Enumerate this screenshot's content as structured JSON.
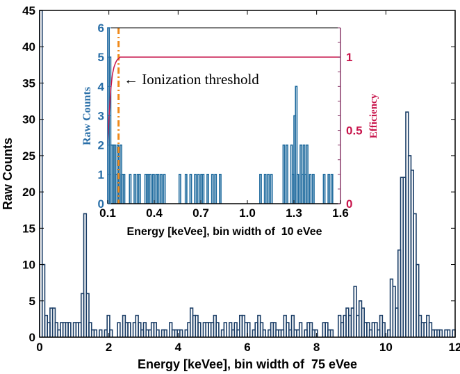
{
  "chart_data": [
    {
      "type": "bar",
      "subtype": "histogram",
      "name": "main",
      "xlabel": "Energy [keVee], bin width of  75 eVee",
      "ylabel": "Raw Counts",
      "xlim": [
        0,
        12
      ],
      "ylim": [
        0,
        45
      ],
      "bin_width": 0.075,
      "xticks": [
        "0",
        "2",
        "4",
        "6",
        "8",
        "10",
        "12"
      ],
      "yticks": [
        "0",
        "5",
        "10",
        "15",
        "20",
        "25",
        "30",
        "35",
        "40",
        "45"
      ],
      "values": [
        50,
        10,
        3,
        2,
        4,
        4,
        2,
        1,
        2,
        2,
        2,
        2,
        0,
        2,
        2,
        2,
        6,
        17,
        6,
        2,
        1,
        1,
        0,
        1,
        0,
        1,
        3,
        1,
        0,
        0,
        2,
        0,
        3,
        2,
        2,
        0,
        2,
        3,
        2,
        1,
        2,
        1,
        1,
        2,
        2,
        1,
        0,
        1,
        1,
        0,
        2,
        1,
        1,
        1,
        1,
        0,
        1,
        2,
        4,
        3,
        3,
        2,
        0,
        2,
        2,
        2,
        2,
        3,
        2,
        0,
        1,
        2,
        0,
        2,
        1,
        2,
        1,
        3,
        3,
        2,
        2,
        0,
        1,
        2,
        3,
        2,
        1,
        0,
        1,
        2,
        2,
        1,
        1,
        1,
        3,
        2,
        1,
        3,
        1,
        1,
        2,
        0,
        1,
        2,
        2,
        1,
        1,
        0,
        0,
        2,
        2,
        1,
        1,
        0,
        0,
        3,
        2,
        3,
        4,
        3,
        4,
        7,
        3,
        5,
        4,
        2,
        2,
        1,
        2,
        2,
        1,
        3,
        2,
        0,
        1,
        8,
        7,
        4,
        12,
        22,
        22,
        31,
        25,
        23,
        17,
        10,
        3,
        2,
        2,
        3,
        2,
        1,
        1,
        1,
        1,
        0,
        1,
        1,
        0,
        1
      ]
    },
    {
      "type": "bar",
      "subtype": "histogram",
      "name": "inset",
      "xlabel": "Energy [keVee], bin width of  10 eVee",
      "ylabel": "Raw Counts",
      "y2label": "Efficiency",
      "xlim": [
        0.1,
        1.6
      ],
      "ylim": [
        0,
        6
      ],
      "y2lim": [
        0,
        1.2
      ],
      "bin_width": 0.01,
      "xticks": [
        "0.1",
        "0.4",
        "0.7",
        "1.0",
        "1.3",
        "1.6"
      ],
      "yticks": [
        "0",
        "1",
        "2",
        "3",
        "4",
        "5",
        "6"
      ],
      "y2ticks": [
        "0",
        "0.5",
        "1"
      ],
      "annotation": "← Ionization threshold",
      "threshold_x": 0.17,
      "values": [
        7,
        5,
        2,
        2,
        2,
        1,
        2,
        1,
        2,
        1,
        1,
        0,
        0,
        0,
        1,
        0,
        0,
        1,
        0,
        1,
        1,
        0,
        0,
        0,
        1,
        1,
        1,
        1,
        0,
        1,
        0,
        1,
        1,
        0,
        1,
        0,
        1,
        0,
        0,
        0,
        0,
        0,
        0,
        0,
        0,
        0,
        1,
        0,
        0,
        0,
        1,
        0,
        0,
        1,
        0,
        0,
        1,
        0,
        1,
        0,
        1,
        1,
        0,
        0,
        1,
        0,
        0,
        1,
        0,
        1,
        0,
        0,
        1,
        0,
        0,
        0,
        0,
        0,
        0,
        0,
        0,
        0,
        0,
        0,
        0,
        0,
        0,
        0,
        0,
        0,
        0,
        0,
        0,
        0,
        0,
        0,
        0,
        0,
        1,
        0,
        0,
        1,
        0,
        1,
        0,
        1,
        0,
        0,
        0,
        0,
        0,
        0,
        0,
        2,
        0,
        2,
        0,
        0,
        2,
        1,
        3,
        4,
        1,
        0,
        2,
        1,
        2,
        1,
        2,
        0,
        1,
        0,
        1,
        0,
        0,
        0,
        0,
        0,
        0,
        1,
        0,
        0,
        1,
        0,
        1,
        0,
        0,
        0,
        0,
        0,
        0,
        0
      ],
      "efficiency": {
        "x": [
          0.1,
          0.11,
          0.12,
          0.13,
          0.14,
          0.15,
          0.16,
          0.17,
          0.18,
          1.6
        ],
        "y": [
          0.41,
          0.62,
          0.78,
          0.88,
          0.93,
          0.96,
          0.98,
          0.99,
          1.0,
          1.0
        ]
      },
      "colors": {
        "hist": "#1f6b9e",
        "efficiency": "#c8144b",
        "threshold": "#f08a1c",
        "axis_left": "#2a6fa8",
        "axis_right": "#c8144b"
      }
    }
  ]
}
